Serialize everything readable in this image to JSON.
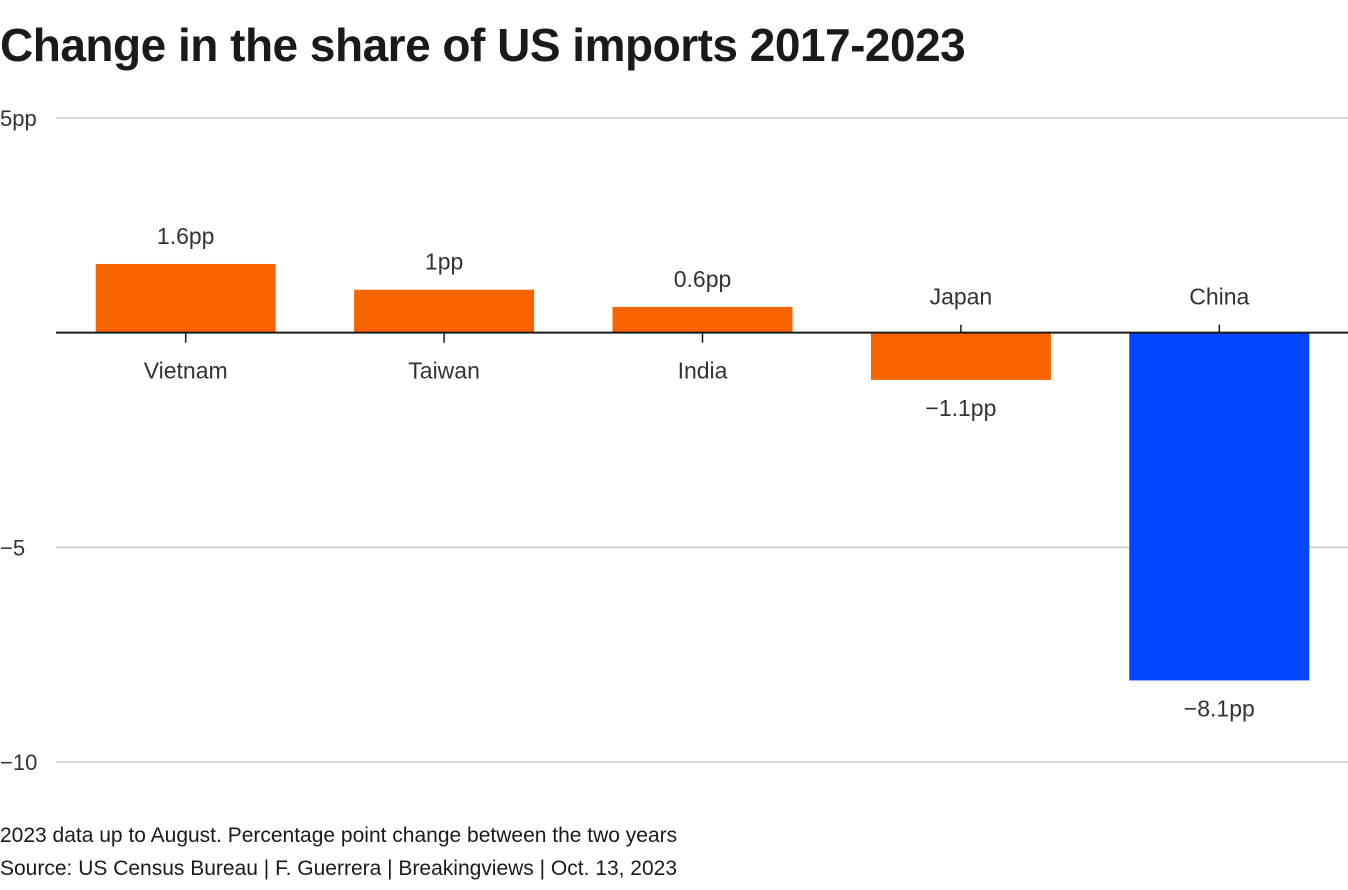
{
  "title": "Change in the share of US imports 2017-2023",
  "note": "2023 data up to August. Percentage point change between the two years",
  "source": "Source: US Census Bureau | F. Guerrera | Breakingviews | Oct. 13, 2023",
  "colors": {
    "positive": "#fa6400",
    "negative_highlight": "#0046ff",
    "grid": "#cccccc",
    "axis": "#1a1a1a",
    "text": "#333333"
  },
  "chart_data": {
    "type": "bar",
    "title": "Change in the share of US imports 2017-2023",
    "xlabel": "",
    "ylabel": "",
    "categories": [
      "Vietnam",
      "Taiwan",
      "India",
      "Japan",
      "China"
    ],
    "values": [
      1.6,
      1.0,
      0.6,
      -1.1,
      -8.1
    ],
    "value_labels": [
      "1.6pp",
      "1pp",
      "0.6pp",
      "−1.1pp",
      "−8.1pp"
    ],
    "bar_colors": [
      "#fa6400",
      "#fa6400",
      "#fa6400",
      "#fa6400",
      "#0046ff"
    ],
    "ylim": [
      -10,
      5
    ],
    "yticks": [
      5,
      -5,
      -10
    ],
    "ytick_labels": [
      "5pp",
      "−5",
      "−10"
    ],
    "grid": true,
    "legend": "none"
  }
}
